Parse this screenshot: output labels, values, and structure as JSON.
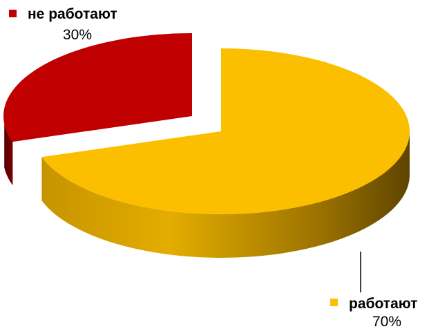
{
  "chart_data": {
    "type": "pie",
    "style": "3d-exploded",
    "slices": [
      {
        "label": "не работают",
        "value": 30,
        "value_label": "30%",
        "color": "#c00000"
      },
      {
        "label": "работают",
        "value": 70,
        "value_label": "70%",
        "color": "#fbbf00"
      }
    ]
  }
}
